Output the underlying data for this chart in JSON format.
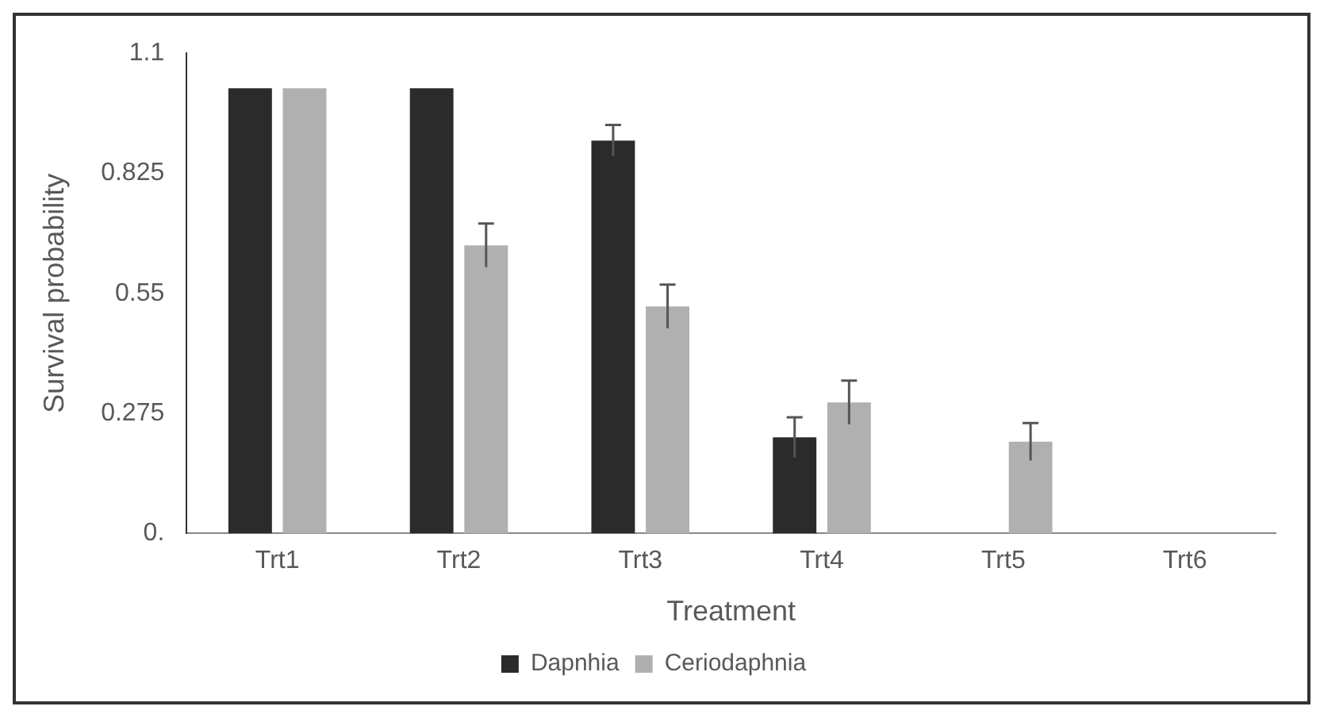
{
  "chart_data": {
    "type": "bar",
    "xlabel": "Treatment",
    "ylabel": "Survival probability",
    "categories": [
      "Trt1",
      "Trt2",
      "Trt3",
      "Trt4",
      "Trt5",
      "Trt6"
    ],
    "series": [
      {
        "name": "Dapnhia",
        "color": "#2b2b2b",
        "values": [
          1.02,
          1.02,
          0.9,
          0.22,
          0,
          0
        ],
        "errors": [
          null,
          null,
          0.036,
          0.046,
          null,
          null
        ]
      },
      {
        "name": "Ceriodaphnia",
        "color": "#b0b0b0",
        "values": [
          1.02,
          0.66,
          0.52,
          0.3,
          0.21,
          0
        ],
        "errors": [
          null,
          0.05,
          0.05,
          0.05,
          0.043,
          null
        ]
      }
    ],
    "ylim": [
      0,
      1.1
    ],
    "yticks": [
      {
        "value": 0,
        "label": "0."
      },
      0.275,
      0.55,
      0.825,
      1.1
    ],
    "grid": false,
    "legend": "bottom"
  }
}
